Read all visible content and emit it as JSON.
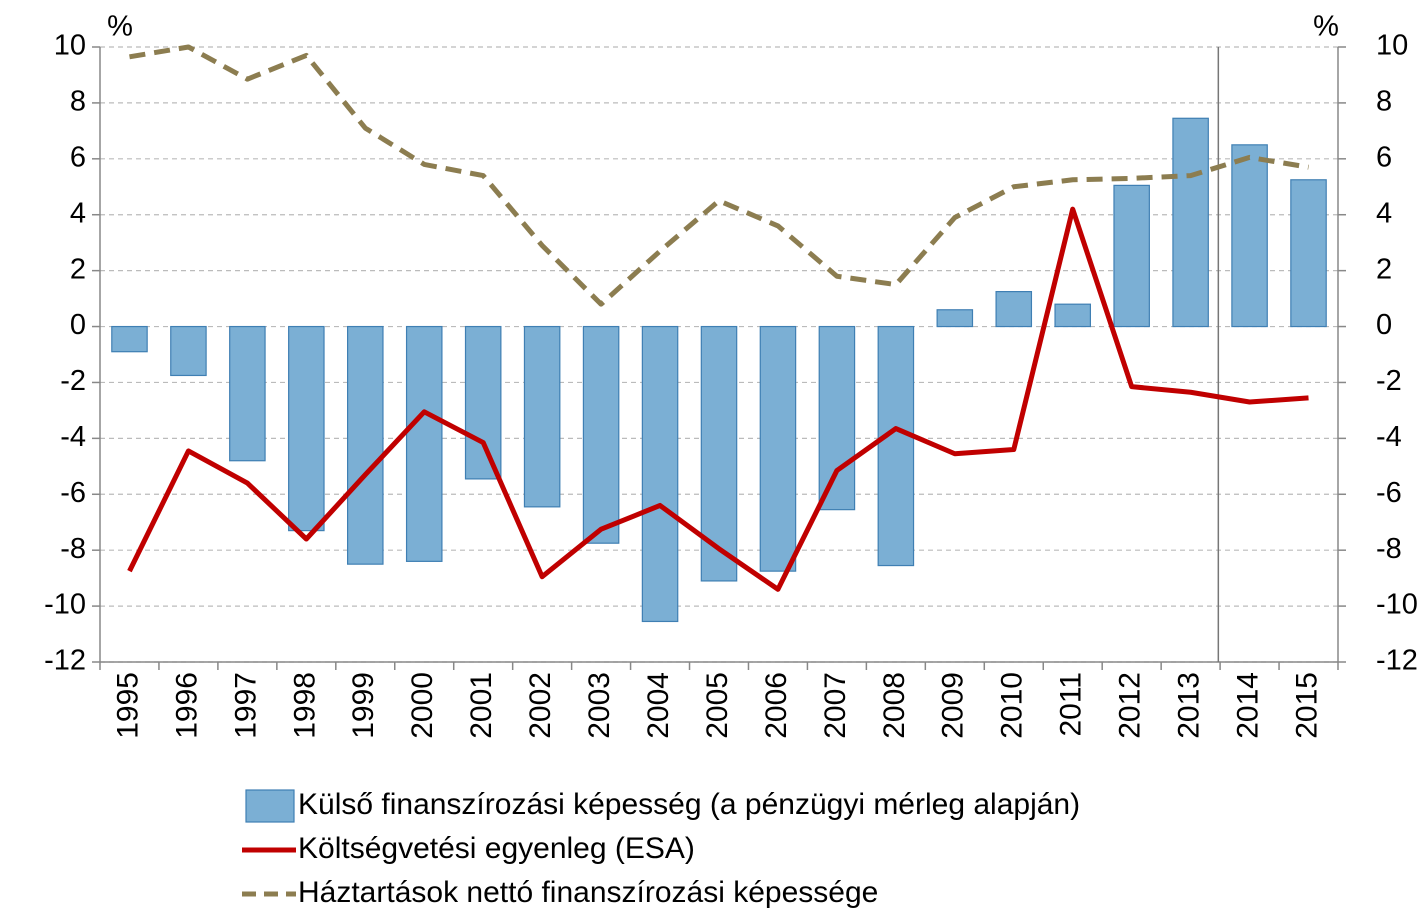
{
  "chart_data": {
    "type": "bar_line",
    "y_label": "%",
    "y2_label": "%",
    "categories": [
      "1995",
      "1996",
      "1997",
      "1998",
      "1999",
      "2000",
      "2001",
      "2002",
      "2003",
      "2004",
      "2005",
      "2006",
      "2007",
      "2008",
      "2009",
      "2010",
      "2011",
      "2012",
      "2013",
      "2014",
      "2015"
    ],
    "series": [
      {
        "name": "Külső finanszírozási képesség (a pénzügyi mérleg alapján)",
        "type": "bar",
        "color": "#7bafd4",
        "values": [
          -0.9,
          -1.75,
          -4.8,
          -7.3,
          -8.5,
          -8.4,
          -5.45,
          -6.45,
          -7.75,
          -10.55,
          -9.1,
          -8.75,
          -6.55,
          -8.55,
          0.6,
          1.25,
          0.8,
          5.05,
          7.45,
          6.5,
          5.25
        ]
      },
      {
        "name": "Költségvetési egyenleg (ESA)",
        "type": "line",
        "color": "#c00000",
        "values": [
          -8.75,
          -4.45,
          -5.6,
          -7.6,
          -5.3,
          -3.05,
          -4.15,
          -8.95,
          -7.25,
          -6.4,
          -7.95,
          -9.4,
          -5.15,
          -3.65,
          -4.55,
          -4.4,
          4.2,
          -2.15,
          -2.35,
          -2.7,
          -2.55
        ]
      },
      {
        "name": "Háztartások nettó finanszírozási képessége",
        "type": "dashed",
        "color": "#8c7d50",
        "values": [
          9.65,
          10.0,
          8.85,
          9.7,
          7.1,
          5.8,
          5.4,
          2.9,
          0.8,
          2.7,
          4.5,
          3.6,
          1.8,
          1.5,
          3.9,
          5.0,
          5.25,
          5.3,
          5.4,
          6.05,
          5.7
        ]
      }
    ],
    "ylim": [
      -12,
      10
    ],
    "yticks": [
      -12,
      -10,
      -8,
      -6,
      -4,
      -2,
      0,
      2,
      4,
      6,
      8,
      10
    ],
    "y2lim": [
      -12,
      10
    ],
    "y2ticks": [
      -12,
      -10,
      -8,
      -6,
      -4,
      -2,
      0,
      2,
      4,
      6,
      8,
      10
    ],
    "grid": true
  }
}
